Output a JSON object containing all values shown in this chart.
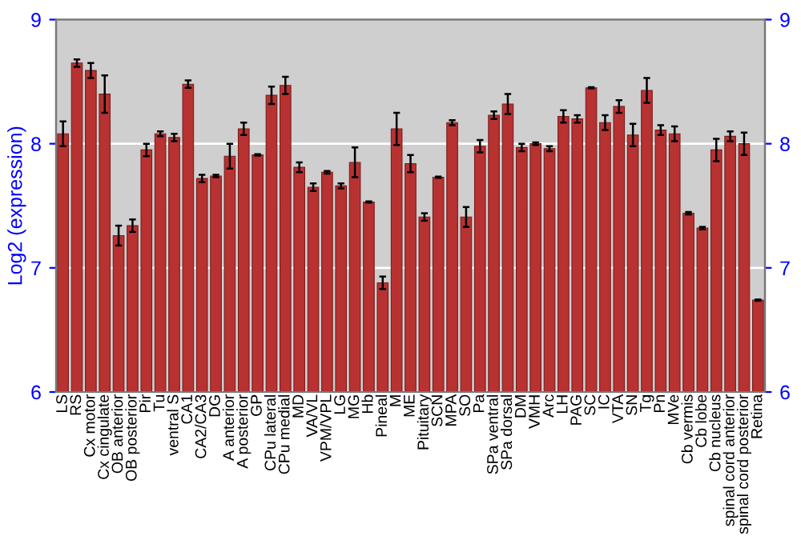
{
  "chart_data": {
    "type": "bar",
    "ylabel": "Log2 (expression)",
    "categories": [
      "LS",
      "RS",
      "Cx motor",
      "Cx cingulate",
      "OB anterior",
      "OB posterior",
      "Pir",
      "Tu",
      "ventral S",
      "CA1",
      "CA2/CA3",
      "DG",
      "A anterior",
      "A posterior",
      "GP",
      "CPu lateral",
      "CPu medial",
      "MD",
      "VA/VL",
      "VPM/VPL",
      "LG",
      "MG",
      "Hb",
      "Pineal",
      "M",
      "ME",
      "Pituitary",
      "SCN",
      "MPA",
      "SO",
      "Pa",
      "SPa ventral",
      "SPa dorsal",
      "DM",
      "VMH",
      "Arc",
      "LH",
      "PAG",
      "SC",
      "IC",
      "VTA",
      "SN",
      "Tg",
      "Pn",
      "MVe",
      "Cb vermis",
      "Cb lobe",
      "Cb nucleus",
      "spinal cord anterior",
      "spinal cord posterior",
      "Retina"
    ],
    "values": [
      8.08,
      8.65,
      8.59,
      8.4,
      7.26,
      7.34,
      7.95,
      8.08,
      8.05,
      8.48,
      7.72,
      7.74,
      7.9,
      8.12,
      7.91,
      8.39,
      8.47,
      7.81,
      7.65,
      7.77,
      7.66,
      7.85,
      7.53,
      6.88,
      8.12,
      7.84,
      7.41,
      7.73,
      8.17,
      7.41,
      7.98,
      8.23,
      8.32,
      7.97,
      8.0,
      7.96,
      8.22,
      8.2,
      8.45,
      8.17,
      8.3,
      8.07,
      8.43,
      8.11,
      8.08,
      7.44,
      7.32,
      7.95,
      8.06,
      8.0,
      6.74
    ],
    "errors": [
      0.1,
      0.03,
      0.06,
      0.15,
      0.08,
      0.05,
      0.05,
      0.02,
      0.03,
      0.03,
      0.03,
      0.01,
      0.1,
      0.05,
      0.005,
      0.07,
      0.07,
      0.04,
      0.03,
      0.01,
      0.02,
      0.12,
      0.005,
      0.05,
      0.13,
      0.07,
      0.03,
      0.005,
      0.02,
      0.08,
      0.05,
      0.03,
      0.08,
      0.03,
      0.01,
      0.02,
      0.05,
      0.03,
      0.005,
      0.06,
      0.05,
      0.09,
      0.1,
      0.04,
      0.06,
      0.01,
      0.01,
      0.09,
      0.04,
      0.09,
      0.005
    ],
    "color": "#b83232",
    "ylim": [
      6,
      9
    ],
    "yticks": [
      6,
      7,
      8,
      9
    ],
    "y2lim": [
      6,
      9
    ],
    "y2ticks": [
      6,
      7,
      8,
      9
    ],
    "grid": "y"
  }
}
